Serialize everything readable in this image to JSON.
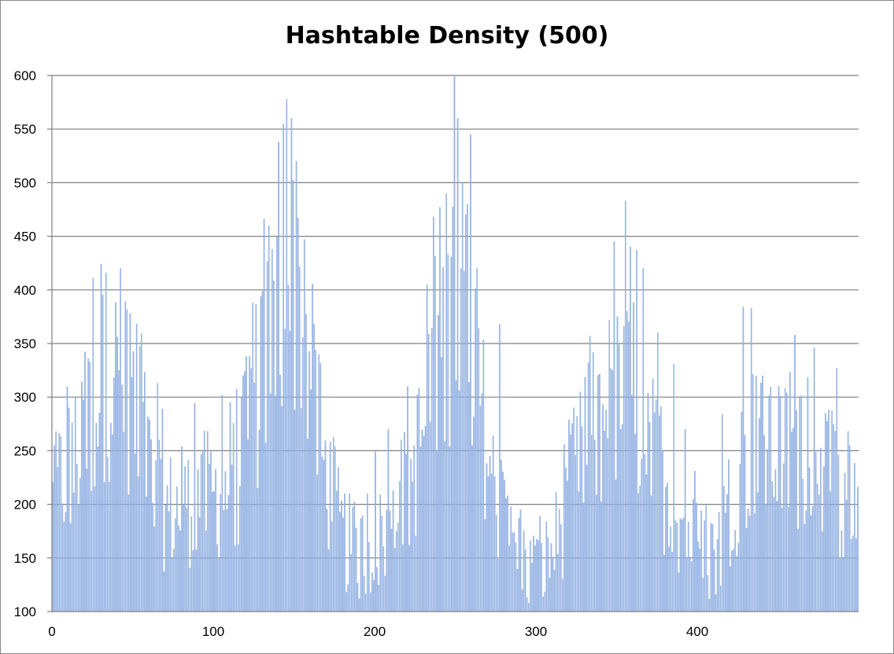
{
  "chart_data": {
    "type": "bar",
    "title": "Hashtable Density (500)",
    "xlabel": "",
    "ylabel": "",
    "xlim": [
      0,
      500
    ],
    "ylim": [
      100,
      600
    ],
    "x_ticks": [
      0,
      100,
      200,
      300,
      400
    ],
    "y_ticks": [
      100,
      150,
      200,
      250,
      300,
      350,
      400,
      450,
      500,
      550,
      600
    ],
    "grid": "horizontal",
    "legend": "none",
    "bar_count": 500,
    "bar_color": "#9ab7e6",
    "bar_edge_color": "#7fa1d9",
    "grid_color": "#7f7f7f",
    "envelope_knots": [
      [
        0,
        225
      ],
      [
        10,
        265
      ],
      [
        20,
        290
      ],
      [
        30,
        345
      ],
      [
        38,
        360
      ],
      [
        45,
        340
      ],
      [
        55,
        305
      ],
      [
        63,
        225
      ],
      [
        75,
        215
      ],
      [
        90,
        230
      ],
      [
        105,
        235
      ],
      [
        115,
        255
      ],
      [
        125,
        325
      ],
      [
        135,
        395
      ],
      [
        145,
        455
      ],
      [
        152,
        445
      ],
      [
        160,
        360
      ],
      [
        168,
        265
      ],
      [
        178,
        195
      ],
      [
        188,
        170
      ],
      [
        200,
        180
      ],
      [
        210,
        200
      ],
      [
        220,
        235
      ],
      [
        230,
        300
      ],
      [
        240,
        380
      ],
      [
        250,
        425
      ],
      [
        258,
        395
      ],
      [
        265,
        335
      ],
      [
        272,
        250
      ],
      [
        282,
        190
      ],
      [
        292,
        165
      ],
      [
        300,
        150
      ],
      [
        310,
        175
      ],
      [
        320,
        230
      ],
      [
        330,
        280
      ],
      [
        342,
        315
      ],
      [
        355,
        340
      ],
      [
        365,
        310
      ],
      [
        375,
        260
      ],
      [
        385,
        225
      ],
      [
        395,
        190
      ],
      [
        405,
        165
      ],
      [
        415,
        195
      ],
      [
        425,
        250
      ],
      [
        435,
        290
      ],
      [
        445,
        285
      ],
      [
        455,
        270
      ],
      [
        465,
        285
      ],
      [
        475,
        270
      ],
      [
        485,
        240
      ],
      [
        495,
        210
      ],
      [
        499,
        195
      ]
    ],
    "peaks": [
      [
        1,
        255
      ],
      [
        10,
        290
      ],
      [
        22,
        336
      ],
      [
        25,
        411
      ],
      [
        30,
        424
      ],
      [
        33,
        416
      ],
      [
        42,
        420
      ],
      [
        48,
        378
      ],
      [
        55,
        359
      ],
      [
        65,
        313
      ],
      [
        68,
        289
      ],
      [
        88,
        294
      ],
      [
        105,
        302
      ],
      [
        118,
        320
      ],
      [
        124,
        388
      ],
      [
        131,
        466
      ],
      [
        134,
        460
      ],
      [
        140,
        538
      ],
      [
        143,
        555
      ],
      [
        145,
        578
      ],
      [
        148,
        560
      ],
      [
        151,
        520
      ],
      [
        156,
        447
      ],
      [
        162,
        368
      ],
      [
        195,
        210
      ],
      [
        200,
        249
      ],
      [
        208,
        270
      ],
      [
        220,
        310
      ],
      [
        232,
        405
      ],
      [
        236,
        468
      ],
      [
        240,
        477
      ],
      [
        244,
        490
      ],
      [
        249,
        600
      ],
      [
        251,
        560
      ],
      [
        254,
        500
      ],
      [
        257,
        480
      ],
      [
        259,
        545
      ],
      [
        263,
        420
      ],
      [
        277,
        368
      ],
      [
        282,
        208
      ],
      [
        290,
        195
      ],
      [
        323,
        290
      ],
      [
        333,
        357
      ],
      [
        345,
        372
      ],
      [
        348,
        445
      ],
      [
        355,
        483
      ],
      [
        358,
        440
      ],
      [
        362,
        437
      ],
      [
        366,
        420
      ],
      [
        375,
        360
      ],
      [
        385,
        331
      ],
      [
        392,
        270
      ],
      [
        398,
        231
      ],
      [
        405,
        200
      ],
      [
        415,
        284
      ],
      [
        428,
        384
      ],
      [
        433,
        383
      ],
      [
        440,
        320
      ],
      [
        450,
        310
      ],
      [
        460,
        358
      ],
      [
        472,
        346
      ],
      [
        486,
        327
      ],
      [
        493,
        268
      ],
      [
        499,
        216
      ]
    ]
  }
}
